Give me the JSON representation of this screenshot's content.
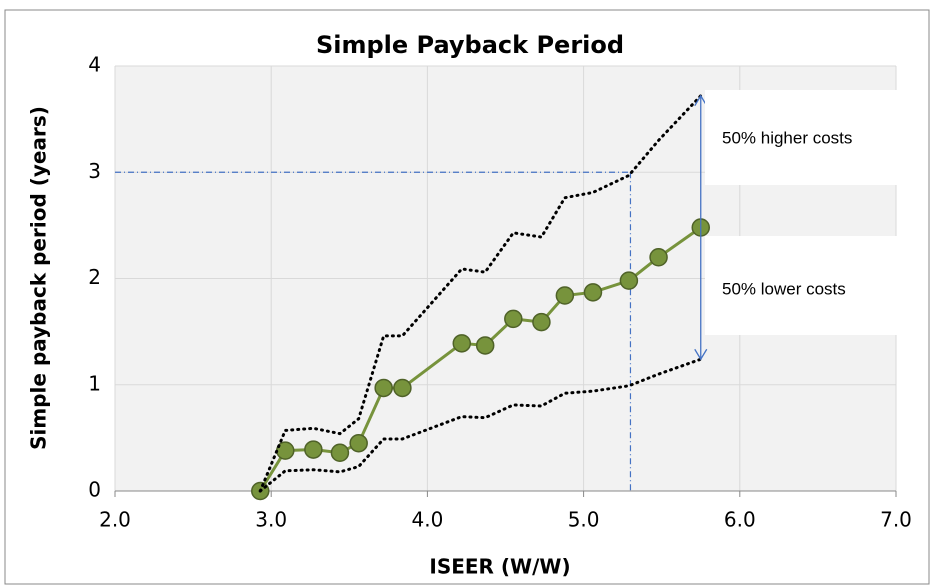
{
  "chart_data": {
    "type": "line",
    "title": "Simple Payback Period",
    "x_label": "ISEER (W/W)",
    "y_label": "Simple payback period (years)",
    "x": [
      2.93,
      3.09,
      3.27,
      3.44,
      3.56,
      3.72,
      3.84,
      4.22,
      4.37,
      4.55,
      4.73,
      4.88,
      5.06,
      5.29,
      5.48,
      5.75
    ],
    "series": [
      {
        "color": "#77933c",
        "style": "solid-markers",
        "values": [
          0,
          0.38,
          0.39,
          0.36,
          0.45,
          0.97,
          0.97,
          1.39,
          1.37,
          1.62,
          1.59,
          1.84,
          1.87,
          1.98,
          2.2,
          2.48
        ]
      },
      {
        "color": "#000000",
        "style": "dotted",
        "values": [
          0,
          0.57,
          0.59,
          0.54,
          0.68,
          1.46,
          1.46,
          2.09,
          2.06,
          2.43,
          2.39,
          2.76,
          2.81,
          2.97,
          3.3,
          3.72
        ]
      },
      {
        "color": "#000000",
        "style": "dotted",
        "values": [
          0,
          0.19,
          0.2,
          0.18,
          0.23,
          0.49,
          0.49,
          0.7,
          0.69,
          0.81,
          0.8,
          0.92,
          0.94,
          0.99,
          1.1,
          1.24
        ]
      }
    ],
    "xlim": [
      2,
      7
    ],
    "xticks": [
      {
        "value": 2,
        "label": "2.0"
      },
      {
        "value": 3,
        "label": "3.0"
      },
      {
        "value": 4,
        "label": "4.0"
      },
      {
        "value": 5,
        "label": "5.0"
      },
      {
        "value": 6,
        "label": "6.0"
      },
      {
        "value": 7,
        "label": "7.0"
      }
    ],
    "ylim": [
      0,
      4
    ],
    "yticks": [
      0,
      1,
      2,
      3,
      4
    ],
    "grid": true,
    "reference_lines": {
      "x": 5.3,
      "y": 3,
      "color": "#4472c4"
    },
    "annotations": [
      "50% higher costs",
      "50% lower costs"
    ]
  }
}
